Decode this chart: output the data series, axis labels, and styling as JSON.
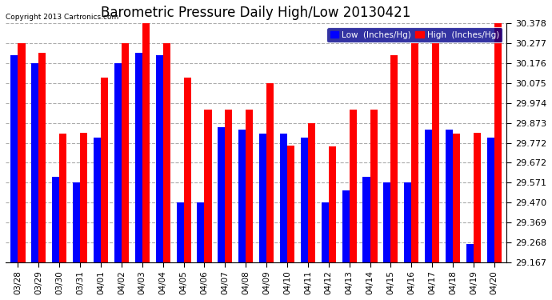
{
  "title": "Barometric Pressure Daily High/Low 20130421",
  "copyright": "Copyright 2013 Cartronics.com",
  "dates": [
    "03/28",
    "03/29",
    "03/30",
    "03/31",
    "04/01",
    "04/02",
    "04/03",
    "04/04",
    "04/05",
    "04/06",
    "04/07",
    "04/08",
    "04/09",
    "04/10",
    "04/11",
    "04/12",
    "04/13",
    "04/14",
    "04/15",
    "04/16",
    "04/17",
    "04/18",
    "04/19",
    "04/20"
  ],
  "low": [
    30.218,
    30.176,
    29.6,
    29.571,
    29.8,
    30.176,
    30.23,
    30.218,
    29.47,
    29.47,
    29.85,
    29.84,
    29.82,
    29.82,
    29.8,
    29.47,
    29.53,
    29.6,
    29.571,
    29.571,
    29.84,
    29.84,
    29.26,
    29.8
  ],
  "high": [
    30.277,
    30.23,
    29.82,
    29.822,
    30.102,
    30.277,
    30.378,
    30.277,
    30.102,
    29.94,
    29.94,
    29.94,
    30.075,
    29.76,
    29.873,
    29.755,
    29.94,
    29.94,
    30.216,
    30.277,
    30.277,
    29.82,
    29.822,
    30.378
  ],
  "ylim_low": 29.167,
  "ylim_high": 30.378,
  "yticks": [
    29.167,
    29.268,
    29.369,
    29.47,
    29.571,
    29.672,
    29.772,
    29.873,
    29.974,
    30.075,
    30.176,
    30.277,
    30.378
  ],
  "bar_width": 0.35,
  "low_color": "#0000ff",
  "high_color": "#ff0000",
  "bg_color": "#ffffff",
  "grid_color": "#aaaaaa",
  "title_fontsize": 12,
  "legend_low_label": "Low  (Inches/Hg)",
  "legend_high_label": "High  (Inches/Hg)"
}
